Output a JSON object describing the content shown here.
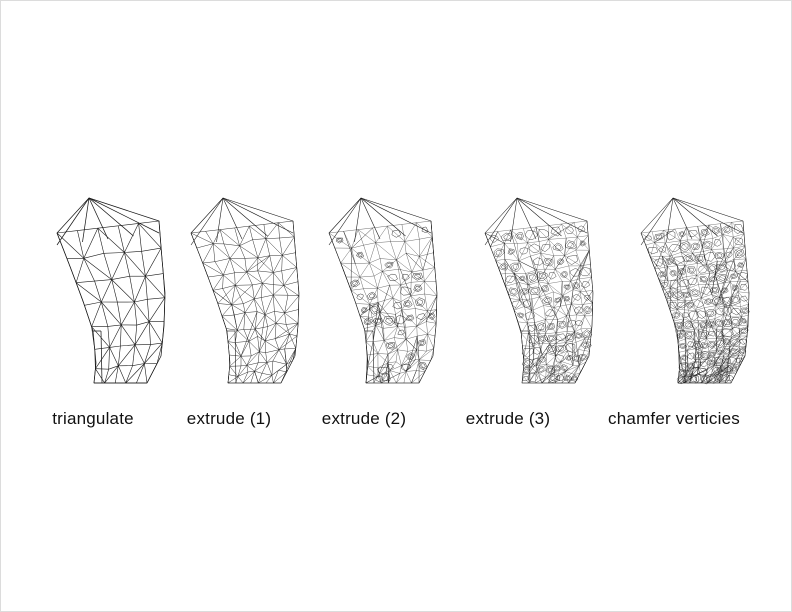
{
  "colors": {
    "background": "#ffffff",
    "line": "#1a1a1a",
    "text": "#111111"
  },
  "stages": [
    {
      "id": "triangulate",
      "label": "triangulate"
    },
    {
      "id": "extrude-1",
      "label": "extrude (1)"
    },
    {
      "id": "extrude-2",
      "label": "extrude (2)"
    },
    {
      "id": "extrude-3",
      "label": "extrude (3)"
    },
    {
      "id": "chamfer",
      "label": "chamfer verticies"
    }
  ]
}
